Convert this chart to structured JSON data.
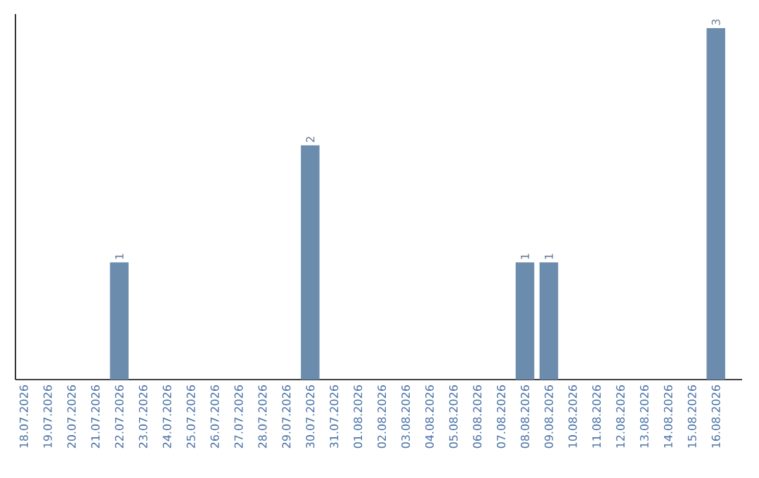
{
  "chart_data": {
    "type": "bar",
    "categories": [
      "18.07.2026",
      "19.07.2026",
      "20.07.2026",
      "21.07.2026",
      "22.07.2026",
      "23.07.2026",
      "24.07.2026",
      "25.07.2026",
      "26.07.2026",
      "27.07.2026",
      "28.07.2026",
      "29.07.2026",
      "30.07.2026",
      "31.07.2026",
      "01.08.2026",
      "02.08.2026",
      "03.08.2026",
      "04.08.2026",
      "05.08.2026",
      "06.08.2026",
      "07.08.2026",
      "08.08.2026",
      "09.08.2026",
      "10.08.2026",
      "11.08.2026",
      "12.08.2026",
      "13.08.2026",
      "14.08.2026",
      "15.08.2026",
      "16.08.2026"
    ],
    "values": [
      0,
      0,
      0,
      0,
      1,
      0,
      0,
      0,
      0,
      0,
      0,
      0,
      2,
      0,
      0,
      0,
      0,
      0,
      0,
      0,
      0,
      1,
      1,
      0,
      0,
      0,
      0,
      0,
      0,
      3
    ],
    "value_labels": [
      null,
      null,
      null,
      null,
      "1",
      null,
      null,
      null,
      null,
      null,
      null,
      null,
      "2",
      null,
      null,
      null,
      null,
      null,
      null,
      null,
      null,
      "1",
      "1",
      null,
      null,
      null,
      null,
      null,
      null,
      "3"
    ],
    "color": "#6b8cac",
    "tick_labels": "x"
  }
}
